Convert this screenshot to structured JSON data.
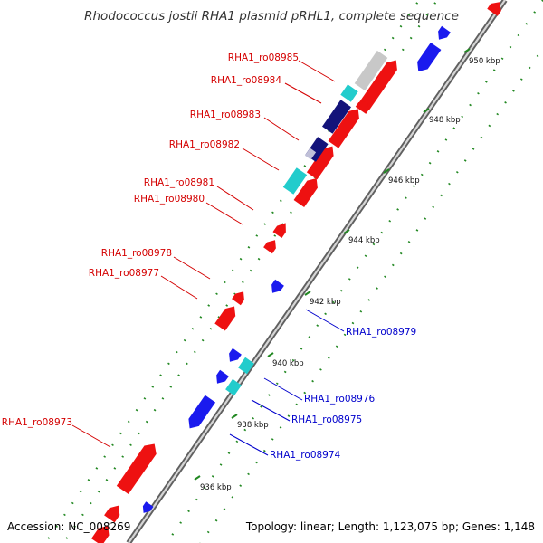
{
  "title": "Rhodococcus jostii RHA1 plasmid pRHL1, complete sequence",
  "footer": {
    "accession": "Accession: NC_008269",
    "summary": "Topology: linear; Length: 1,123,075 bp; Genes: 1,148"
  },
  "ticks": [
    {
      "label": "950 kbp"
    },
    {
      "label": "948 kbp"
    },
    {
      "label": "946 kbp"
    },
    {
      "label": "944 kbp"
    },
    {
      "label": "942 kbp"
    },
    {
      "label": "940 kbp"
    },
    {
      "label": "938 kbp"
    },
    {
      "label": "936 kbp"
    }
  ],
  "genes_forward": [
    {
      "label": "RHA1_ro08985"
    },
    {
      "label": "RHA1_ro08984"
    },
    {
      "label": "RHA1_ro08983"
    },
    {
      "label": "RHA1_ro08982"
    },
    {
      "label": "RHA1_ro08981"
    },
    {
      "label": "RHA1_ro08980"
    },
    {
      "label": "RHA1_ro08978"
    },
    {
      "label": "RHA1_ro08977"
    },
    {
      "label": "RHA1_ro08973"
    }
  ],
  "genes_reverse": [
    {
      "label": "RHA1_ro08979"
    },
    {
      "label": "RHA1_ro08976"
    },
    {
      "label": "RHA1_ro08975"
    },
    {
      "label": "RHA1_ro08974"
    }
  ],
  "colors": {
    "forward_label": "#d40000",
    "reverse_label": "#0000cc",
    "forward_cds": "#ee1111",
    "reverse_cds": "#1a1aee",
    "rna": "#22cccc",
    "dark_feature": "#13137a",
    "backbone": "#999999",
    "dots": "#228822"
  }
}
